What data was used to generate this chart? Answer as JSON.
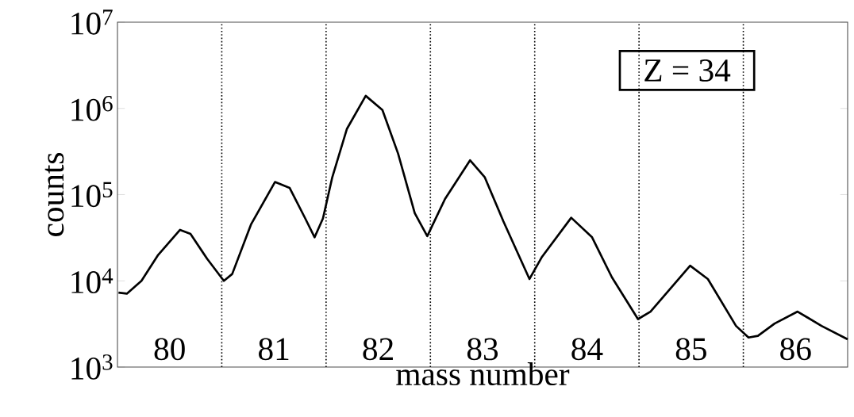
{
  "chart_data": {
    "type": "line",
    "xlabel": "mass number",
    "ylabel": "counts",
    "x": [
      79.51,
      79.59,
      79.73,
      79.89,
      80.1,
      80.2,
      80.36,
      80.52,
      80.6,
      80.78,
      81.01,
      81.15,
      81.3,
      81.39,
      81.47,
      81.56,
      81.7,
      81.88,
      82.04,
      82.19,
      82.35,
      82.47,
      82.64,
      82.88,
      83.02,
      83.2,
      83.45,
      83.57,
      83.85,
      84.05,
      84.24,
      84.49,
      84.61,
      84.99,
      85.16,
      85.43,
      85.55,
      85.64,
      85.8,
      86.02,
      86.25,
      86.5
    ],
    "values": [
      7300,
      7100,
      10000,
      20000,
      39000,
      35000,
      18000,
      10000,
      12000,
      45000,
      140000,
      120000,
      53000,
      32000,
      53000,
      160000,
      580000,
      1400000,
      960000,
      300000,
      61000,
      33000,
      89000,
      250000,
      160000,
      49000,
      10500,
      19000,
      54000,
      32000,
      11000,
      3600,
      4400,
      15000,
      10500,
      3000,
      2200,
      2300,
      3200,
      4400,
      3000,
      2100
    ],
    "color": "#000000",
    "log": "y",
    "marker": "none",
    "line_style": "solid",
    "xlim": [
      79.5,
      86.5
    ],
    "ylim": [
      1000,
      10000000
    ],
    "xticks": [
      80,
      81,
      82,
      83,
      84,
      85,
      86
    ],
    "yticks": [
      {
        "value": 1000,
        "label": "10$^{3}$"
      },
      {
        "value": 10000,
        "label": "10$^{4}$"
      },
      {
        "value": 100000,
        "label": "10$^{5}$"
      },
      {
        "value": 1000000,
        "label": "10$^{6}$"
      },
      {
        "value": 10000000,
        "label": "10$^{7}$"
      }
    ],
    "ref_lines": [
      {
        "axis": "x",
        "value": 80.5,
        "color": "#000000",
        "line_style": "dotted"
      },
      {
        "axis": "x",
        "value": 81.5,
        "color": "#000000",
        "line_style": "dotted"
      },
      {
        "axis": "x",
        "value": 82.5,
        "color": "#000000",
        "line_style": "dotted"
      },
      {
        "axis": "x",
        "value": 83.5,
        "color": "#000000",
        "line_style": "dotted"
      },
      {
        "axis": "x",
        "value": 84.5,
        "color": "#000000",
        "line_style": "dotted"
      },
      {
        "axis": "x",
        "value": 85.5,
        "color": "#000000",
        "line_style": "dotted"
      }
    ],
    "annotations": [
      "Z = 34"
    ]
  }
}
